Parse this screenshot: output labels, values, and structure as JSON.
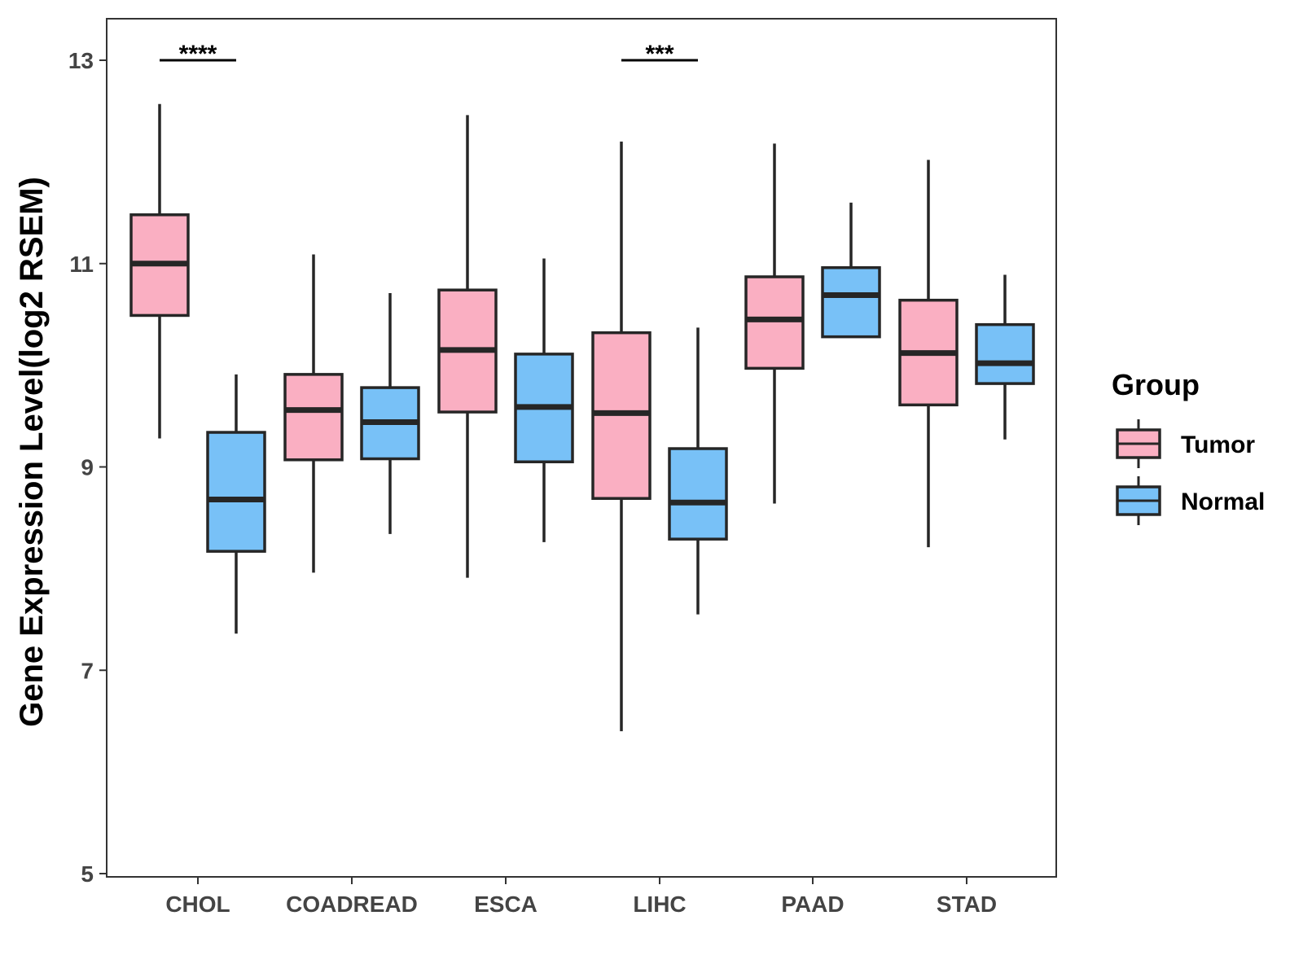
{
  "chart_data": {
    "type": "boxplot",
    "title": "",
    "xlabel": "",
    "ylabel": "Gene Expression Level(log2 RSEM)",
    "ylim": [
      5,
      13.4
    ],
    "yticks": [
      5,
      7,
      9,
      11,
      13
    ],
    "grid": false,
    "legend": {
      "title": "Group",
      "placement": "right",
      "entries": [
        {
          "name": "Tumor",
          "color": "#FAAFC2"
        },
        {
          "name": "Normal",
          "color": "#78C1F7"
        }
      ]
    },
    "categories": [
      "CHOL",
      "COADREAD",
      "ESCA",
      "LIHC",
      "PAAD",
      "STAD"
    ],
    "series": [
      {
        "name": "Tumor",
        "color": "#FAAFC2",
        "boxes": [
          {
            "min": 9.28,
            "q1": 10.49,
            "median": 11.0,
            "q3": 11.48,
            "max": 12.57
          },
          {
            "min": 7.96,
            "q1": 9.07,
            "median": 9.56,
            "q3": 9.91,
            "max": 11.09
          },
          {
            "min": 7.91,
            "q1": 9.54,
            "median": 10.15,
            "q3": 10.74,
            "max": 12.46
          },
          {
            "min": 6.4,
            "q1": 8.69,
            "median": 9.53,
            "q3": 10.32,
            "max": 12.2
          },
          {
            "min": 8.64,
            "q1": 9.97,
            "median": 10.45,
            "q3": 10.87,
            "max": 12.18
          },
          {
            "min": 8.21,
            "q1": 9.61,
            "median": 10.12,
            "q3": 10.64,
            "max": 12.02
          }
        ]
      },
      {
        "name": "Normal",
        "color": "#78C1F7",
        "boxes": [
          {
            "min": 7.36,
            "q1": 8.17,
            "median": 8.68,
            "q3": 9.34,
            "max": 9.91
          },
          {
            "min": 8.34,
            "q1": 9.08,
            "median": 9.44,
            "q3": 9.78,
            "max": 10.71
          },
          {
            "min": 8.26,
            "q1": 9.05,
            "median": 9.59,
            "q3": 10.11,
            "max": 11.05
          },
          {
            "min": 7.55,
            "q1": 8.29,
            "median": 8.65,
            "q3": 9.18,
            "max": 10.37
          },
          {
            "min": 10.28,
            "q1": 10.28,
            "median": 10.69,
            "q3": 10.96,
            "max": 11.6
          },
          {
            "min": 9.27,
            "q1": 9.82,
            "median": 10.02,
            "q3": 10.4,
            "max": 10.89
          }
        ]
      }
    ],
    "annotations": [
      {
        "category": "CHOL",
        "label": "****",
        "y": 13.0
      },
      {
        "category": "LIHC",
        "label": "***",
        "y": 13.0
      }
    ]
  }
}
